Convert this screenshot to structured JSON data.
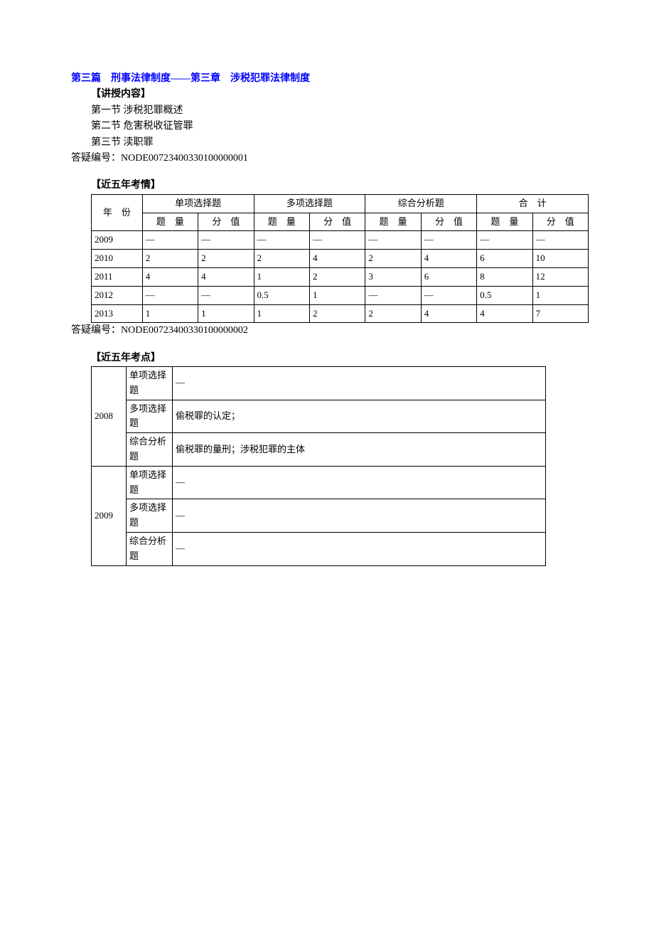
{
  "title": "第三篇　刑事法律制度――第三章　涉税犯罪法律制度",
  "lecture_heading": "【讲授内容】",
  "sections": {
    "s1": "第一节 涉税犯罪概述",
    "s2": "第二节 危害税收征管罪",
    "s3": "第三节 渎职罪"
  },
  "reference1_label": "答疑编号：",
  "reference1_code": "NODE00723400330100000001",
  "exam_heading": "【近五年考情】",
  "exam_table": {
    "year_label": "年　份",
    "groups": {
      "g1": "单项选择题",
      "g2": "多项选择题",
      "g3": "综合分析题",
      "g4": "合　计"
    },
    "subheaders": {
      "qty": "题　量",
      "val": "分　值"
    },
    "rows": [
      {
        "year": "2009",
        "c1q": "—",
        "c1v": "—",
        "c2q": "—",
        "c2v": "—",
        "c3q": "—",
        "c3v": "—",
        "c4q": "—",
        "c4v": "—"
      },
      {
        "year": "2010",
        "c1q": "2",
        "c1v": "2",
        "c2q": "2",
        "c2v": "4",
        "c3q": "2",
        "c3v": "4",
        "c4q": "6",
        "c4v": "10"
      },
      {
        "year": "2011",
        "c1q": "4",
        "c1v": "4",
        "c2q": "1",
        "c2v": "2",
        "c3q": "3",
        "c3v": "6",
        "c4q": "8",
        "c4v": "12"
      },
      {
        "year": "2012",
        "c1q": "—",
        "c1v": "—",
        "c2q": "0.5",
        "c2v": "1",
        "c3q": "—",
        "c3v": "—",
        "c4q": "0.5",
        "c4v": "1"
      },
      {
        "year": "2013",
        "c1q": "1",
        "c1v": "1",
        "c2q": "1",
        "c2v": "2",
        "c3q": "2",
        "c3v": "4",
        "c4q": "4",
        "c4v": "7"
      }
    ]
  },
  "reference2_label": "答疑编号：",
  "reference2_code": "NODE00723400330100000002",
  "points_heading": "【近五年考点】",
  "points_table": {
    "type_labels": {
      "single": "单项选择题",
      "multi": "多项选择题",
      "comprehensive": "综合分析题"
    },
    "rows": [
      {
        "year": "2008",
        "single": "—",
        "multi": "偷税罪的认定；",
        "comprehensive": "偷税罪的量刑；涉税犯罪的主体"
      },
      {
        "year": "2009",
        "single": "—",
        "multi": "—",
        "comprehensive": "—"
      }
    ]
  }
}
